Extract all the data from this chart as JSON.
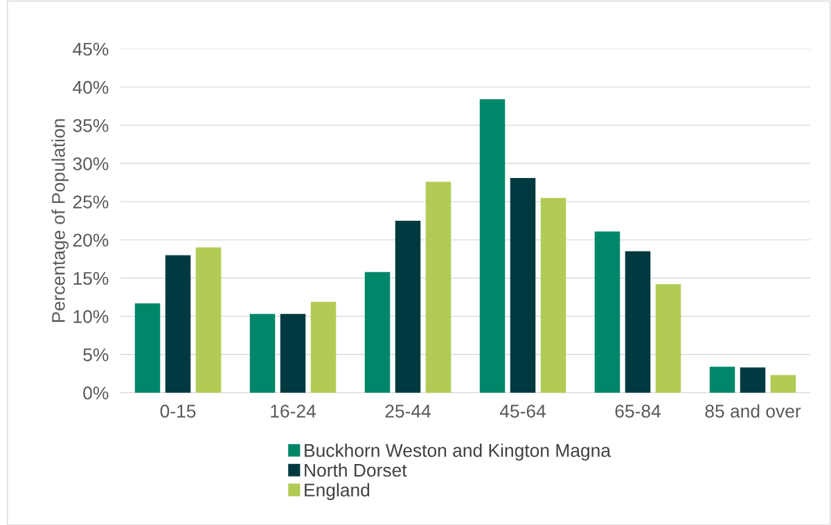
{
  "chart_data": {
    "type": "bar",
    "ylabel": "Percentage of Population",
    "categories": [
      "0-15",
      "16-24",
      "25-44",
      "45-64",
      "65-84",
      "85 and over"
    ],
    "series": [
      {
        "name": "Buckhorn Weston and Kington Magna",
        "color": "#00876a",
        "values": [
          11.7,
          10.3,
          15.8,
          38.4,
          21.1,
          3.4
        ]
      },
      {
        "name": "North Dorset",
        "color": "#003a40",
        "values": [
          18.0,
          10.3,
          22.5,
          28.1,
          18.5,
          3.3
        ]
      },
      {
        "name": "England",
        "color": "#b1cb55",
        "values": [
          19.0,
          11.9,
          27.6,
          25.5,
          14.2,
          2.3
        ]
      }
    ],
    "ylim": [
      0,
      45
    ],
    "yticks": [
      {
        "value": 0,
        "label": "0%"
      },
      {
        "value": 5,
        "label": "5%"
      },
      {
        "value": 10,
        "label": "10%"
      },
      {
        "value": 15,
        "label": "15%"
      },
      {
        "value": 20,
        "label": "20%"
      },
      {
        "value": 25,
        "label": "25%"
      },
      {
        "value": 30,
        "label": "30%"
      },
      {
        "value": 35,
        "label": "35%"
      },
      {
        "value": 40,
        "label": "40%"
      },
      {
        "value": 45,
        "label": "45%"
      }
    ],
    "grid": "y",
    "legend": "bottom"
  }
}
